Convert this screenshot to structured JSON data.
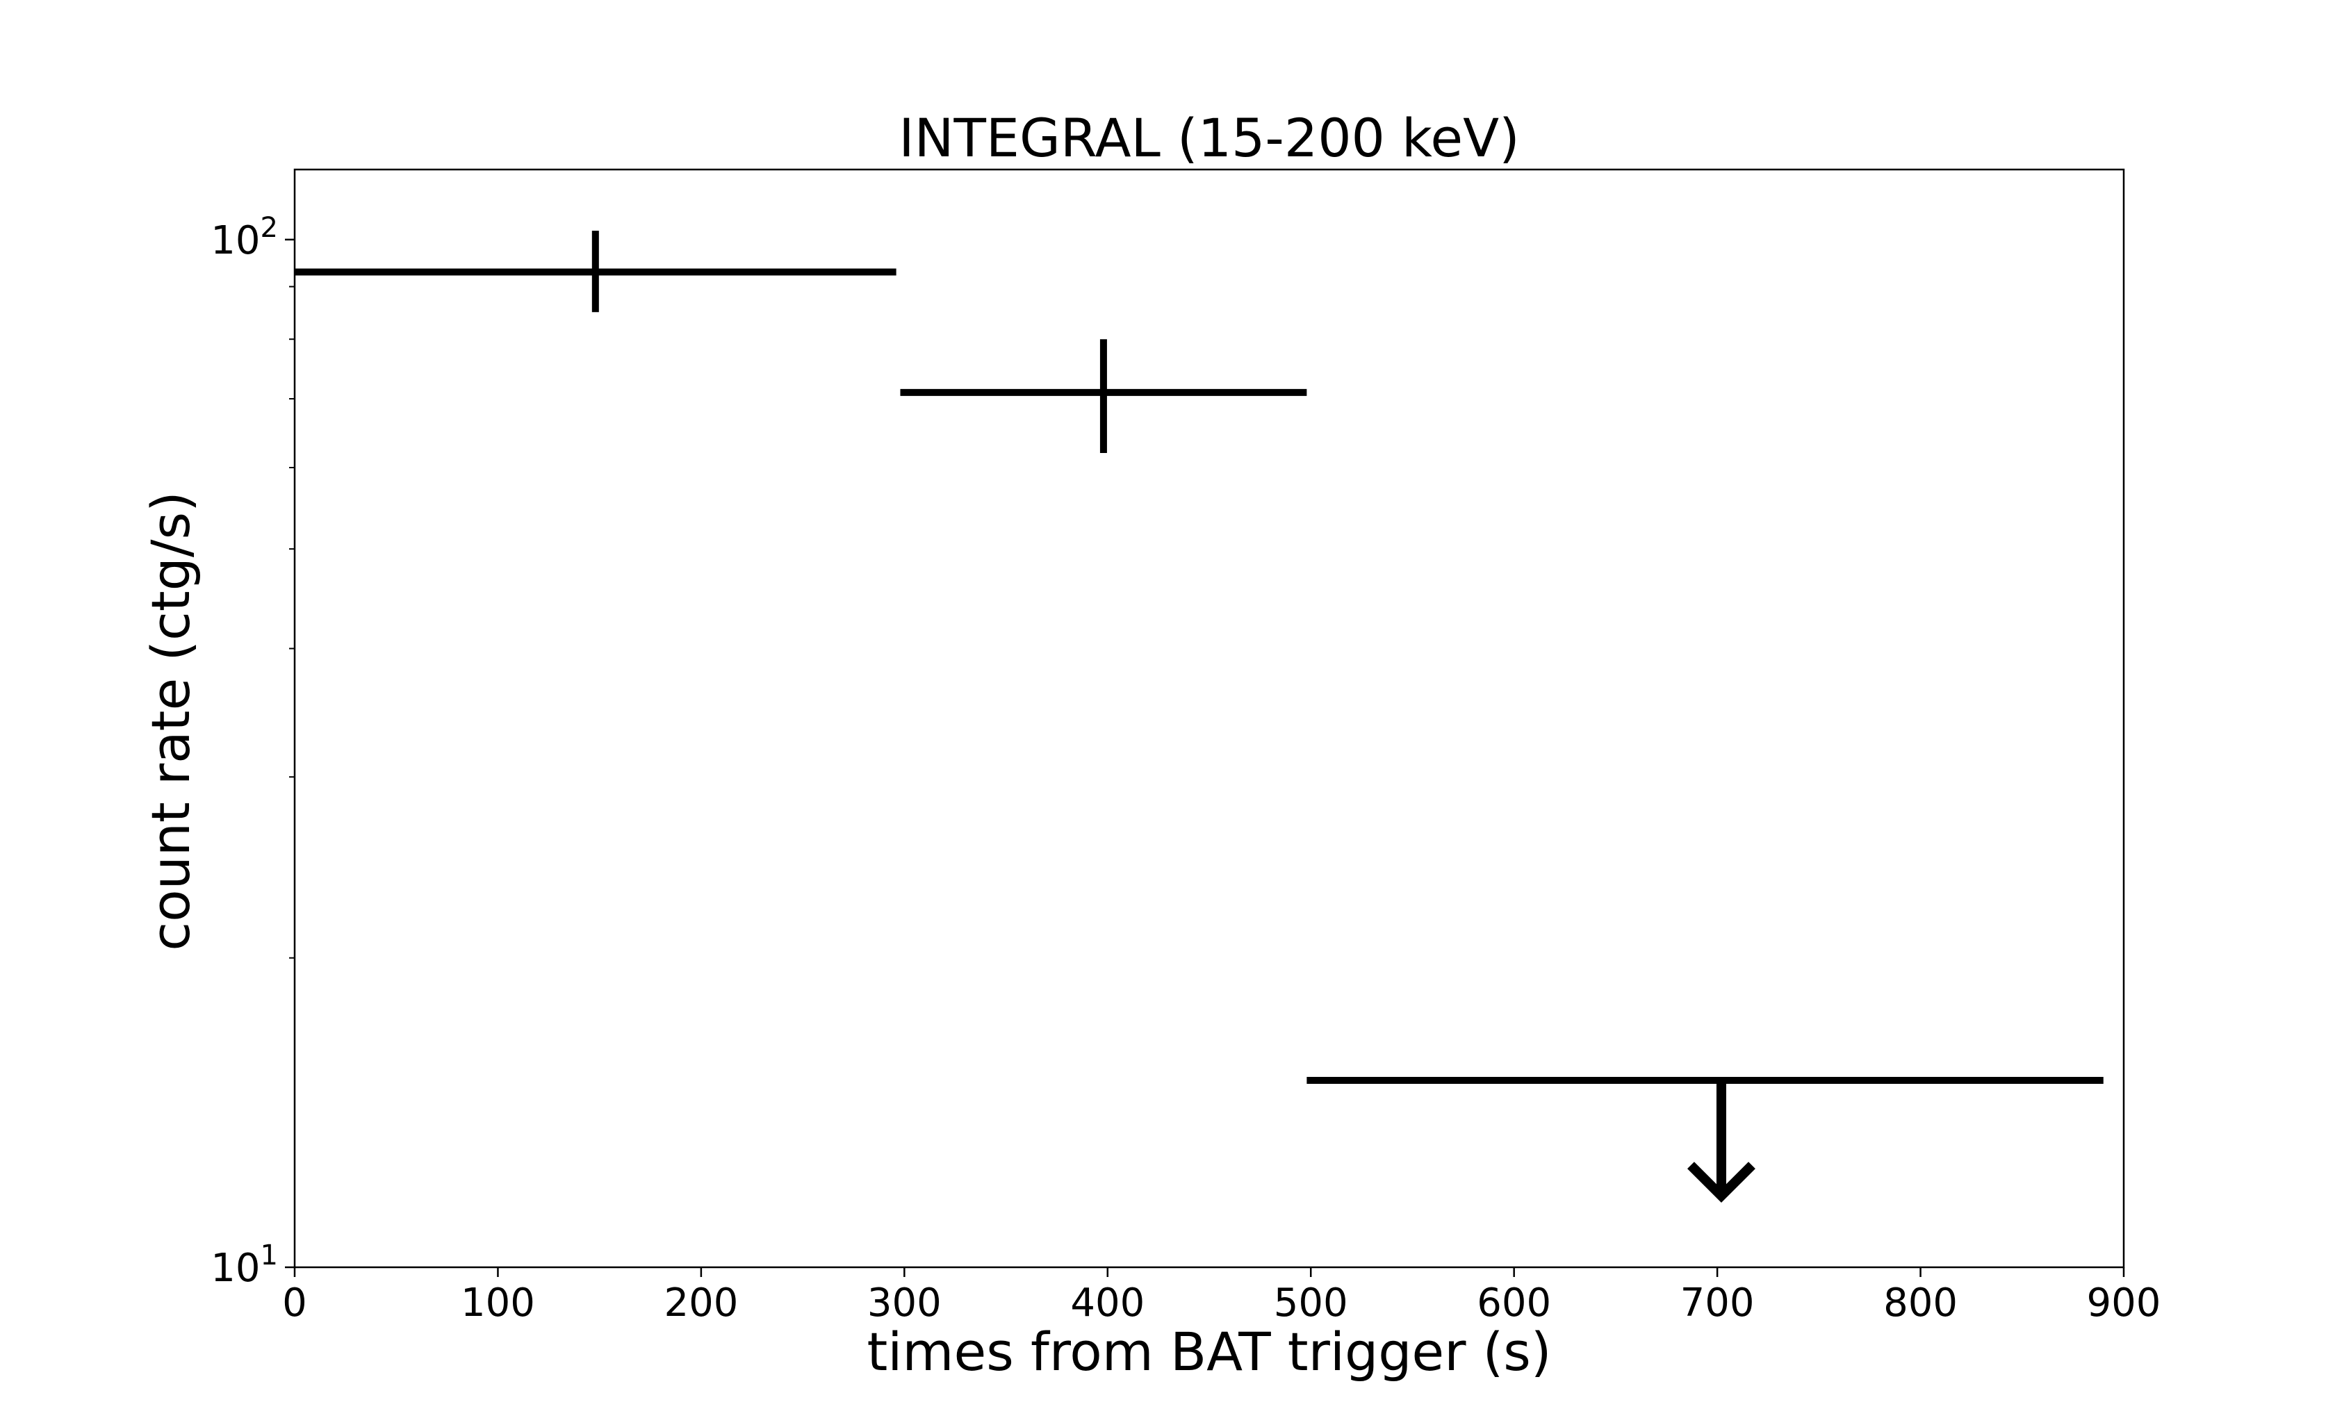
{
  "chart_data": {
    "type": "scatter",
    "title": "INTEGRAL (15-200 keV)",
    "xlabel": "times from BAT trigger (s)",
    "ylabel": "count rate (ctg/s)",
    "xlim": [
      0,
      900
    ],
    "ylim": [
      10,
      117
    ],
    "yscale": "log",
    "grid": false,
    "x_ticks": [
      0,
      100,
      200,
      300,
      400,
      500,
      600,
      700,
      800,
      900
    ],
    "x_tick_labels": [
      "0",
      "100",
      "200",
      "300",
      "400",
      "500",
      "600",
      "700",
      "800",
      "900"
    ],
    "y_ticks": [
      {
        "value": 10,
        "base": "10",
        "exp": "1"
      },
      {
        "value": 100,
        "base": "10",
        "exp": "2"
      }
    ],
    "y_minor_ticks": [
      20,
      30,
      40,
      50,
      60,
      70,
      80,
      90
    ],
    "series": [
      {
        "color": "#000000",
        "points": [
          {
            "x": 148,
            "xerr": [
              148,
              148
            ],
            "y": 93,
            "yerr": [
              8,
              9
            ],
            "upper_limit": false
          },
          {
            "x": 398,
            "xerr": [
              100,
              100
            ],
            "y": 71,
            "yerr": [
              9,
              9
            ],
            "upper_limit": false
          },
          {
            "x": 694,
            "xerr": [
              196,
              196
            ],
            "y": 15.2,
            "upper_limit": true,
            "arrow_x": 702,
            "arrow_to": 11.7
          }
        ]
      }
    ]
  }
}
